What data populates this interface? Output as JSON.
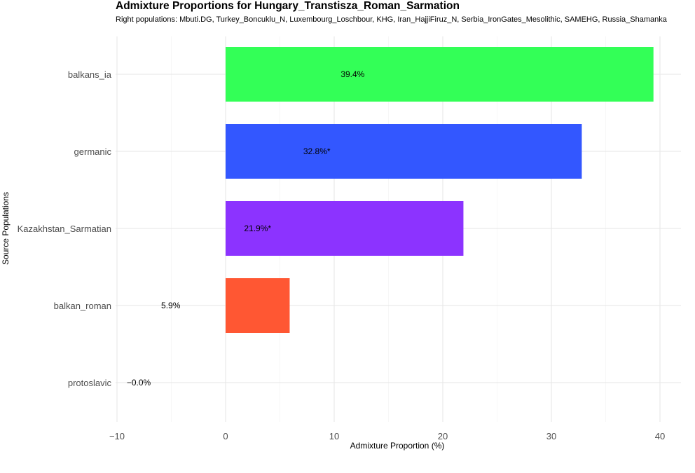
{
  "chart_data": {
    "type": "bar",
    "orientation": "horizontal",
    "title": "Admixture Proportions for Hungary_Transtisza_Roman_Sarmation",
    "subtitle": "Right populations: Mbuti.DG, Turkey_Boncuklu_N, Luxembourg_Loschbour, KHG, Iran_HajjiFiruz_N, Serbia_IronGates_Mesolithic, SAMEHG, Russia_Shamanka",
    "xlabel": "Admixture Proportion (%)",
    "ylabel": "Source Populations",
    "xlim": [
      -10,
      42
    ],
    "xticks": [
      -10,
      0,
      10,
      20,
      30,
      40
    ],
    "xtick_labels": [
      "−10",
      "0",
      "10",
      "20",
      "30",
      "40"
    ],
    "grid": true,
    "legend": "none",
    "categories": [
      "balkans_ia",
      "germanic",
      "Kazakhstan_Sarmatian",
      "balkan_roman",
      "protoslavic"
    ],
    "values": [
      39.4,
      32.8,
      21.9,
      5.9,
      0.0
    ],
    "data_labels": [
      "39.4%",
      "32.8%*",
      "21.9%*",
      "5.9%",
      "−0.0%"
    ],
    "colors": [
      "#33ff57",
      "#3357ff",
      "#8c33ff",
      "#ff5733",
      "#ff33a1"
    ]
  }
}
